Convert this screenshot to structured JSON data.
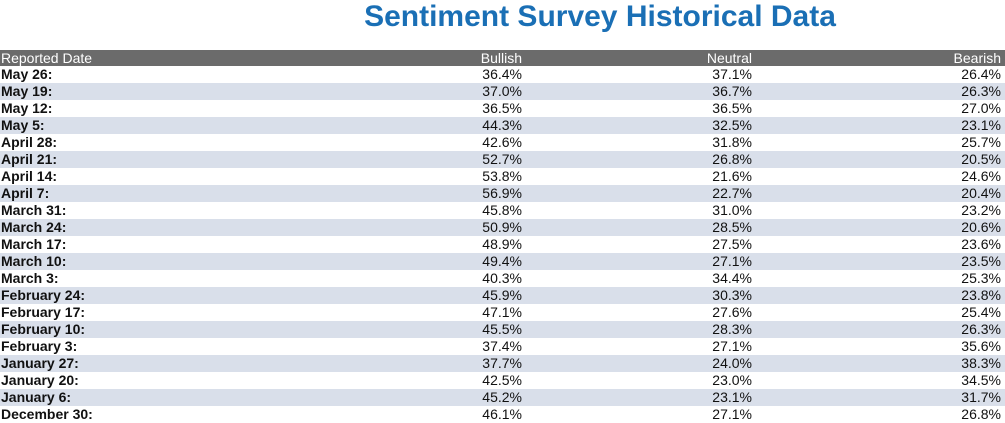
{
  "title": "Sentiment Survey Historical Data",
  "columns": {
    "date": "Reported Date",
    "bullish": "Bullish",
    "neutral": "Neutral",
    "bearish": "Bearish"
  },
  "rows": [
    {
      "date": "May 26:",
      "bullish": "36.4%",
      "neutral": "37.1%",
      "bearish": "26.4%"
    },
    {
      "date": "May 19:",
      "bullish": "37.0%",
      "neutral": "36.7%",
      "bearish": "26.3%"
    },
    {
      "date": "May 12:",
      "bullish": "36.5%",
      "neutral": "36.5%",
      "bearish": "27.0%"
    },
    {
      "date": "May 5:",
      "bullish": "44.3%",
      "neutral": "32.5%",
      "bearish": "23.1%"
    },
    {
      "date": "April 28:",
      "bullish": "42.6%",
      "neutral": "31.8%",
      "bearish": "25.7%"
    },
    {
      "date": "April 21:",
      "bullish": "52.7%",
      "neutral": "26.8%",
      "bearish": "20.5%"
    },
    {
      "date": "April 14:",
      "bullish": "53.8%",
      "neutral": "21.6%",
      "bearish": "24.6%"
    },
    {
      "date": "April 7:",
      "bullish": "56.9%",
      "neutral": "22.7%",
      "bearish": "20.4%"
    },
    {
      "date": "March 31:",
      "bullish": "45.8%",
      "neutral": "31.0%",
      "bearish": "23.2%"
    },
    {
      "date": "March 24:",
      "bullish": "50.9%",
      "neutral": "28.5%",
      "bearish": "20.6%"
    },
    {
      "date": "March 17:",
      "bullish": "48.9%",
      "neutral": "27.5%",
      "bearish": "23.6%"
    },
    {
      "date": "March 10:",
      "bullish": "49.4%",
      "neutral": "27.1%",
      "bearish": "23.5%"
    },
    {
      "date": "March 3:",
      "bullish": "40.3%",
      "neutral": "34.4%",
      "bearish": "25.3%"
    },
    {
      "date": "February 24:",
      "bullish": "45.9%",
      "neutral": "30.3%",
      "bearish": "23.8%"
    },
    {
      "date": "February 17:",
      "bullish": "47.1%",
      "neutral": "27.6%",
      "bearish": "25.4%"
    },
    {
      "date": "February 10:",
      "bullish": "45.5%",
      "neutral": "28.3%",
      "bearish": "26.3%"
    },
    {
      "date": "February 3:",
      "bullish": "37.4%",
      "neutral": "27.1%",
      "bearish": "35.6%"
    },
    {
      "date": "January 27:",
      "bullish": "37.7%",
      "neutral": "24.0%",
      "bearish": "38.3%"
    },
    {
      "date": "January 20:",
      "bullish": "42.5%",
      "neutral": "23.0%",
      "bearish": "34.5%"
    },
    {
      "date": "January 6:",
      "bullish": "45.2%",
      "neutral": "23.1%",
      "bearish": "31.7%"
    },
    {
      "date": "December 30:",
      "bullish": "46.1%",
      "neutral": "27.1%",
      "bearish": "26.8%"
    }
  ],
  "colors": {
    "title": "#1a6fb5",
    "header_bg": "#6b6b6b",
    "stripe": "#d9dfea"
  }
}
